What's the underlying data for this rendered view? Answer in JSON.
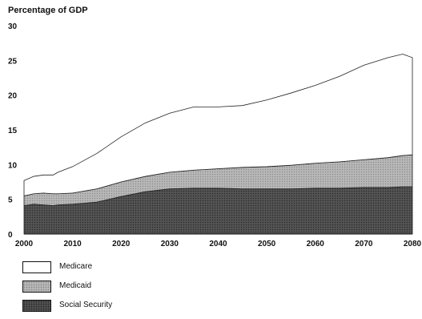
{
  "chart_data": {
    "type": "area",
    "stacked": true,
    "ylabel": "Percentage of GDP",
    "xlabel": "",
    "x": [
      2000,
      2002,
      2004,
      2006,
      2007,
      2010,
      2015,
      2020,
      2025,
      2030,
      2035,
      2040,
      2045,
      2050,
      2055,
      2060,
      2065,
      2070,
      2075,
      2078,
      2080
    ],
    "xlim": [
      2000,
      2080
    ],
    "ylim": [
      0,
      30
    ],
    "xticks": [
      2000,
      2010,
      2020,
      2030,
      2040,
      2050,
      2060,
      2070,
      2080
    ],
    "yticks": [
      0,
      5,
      10,
      15,
      20,
      25,
      30
    ],
    "grid": false,
    "legend_position": "bottom-left",
    "series": [
      {
        "name": "Social Security",
        "color": "#555555",
        "values": [
          4.1,
          4.3,
          4.2,
          4.1,
          4.2,
          4.3,
          4.6,
          5.4,
          6.1,
          6.5,
          6.6,
          6.6,
          6.5,
          6.5,
          6.5,
          6.6,
          6.6,
          6.7,
          6.7,
          6.8,
          6.8
        ]
      },
      {
        "name": "Medicaid",
        "color": "#b8b8b8",
        "values": [
          1.4,
          1.5,
          1.7,
          1.7,
          1.6,
          1.6,
          1.9,
          2.1,
          2.2,
          2.4,
          2.6,
          2.8,
          3.1,
          3.2,
          3.4,
          3.6,
          3.8,
          4.0,
          4.3,
          4.5,
          4.6
        ]
      },
      {
        "name": "Medicare",
        "color": "#ffffff",
        "values": [
          2.2,
          2.5,
          2.6,
          2.7,
          3.1,
          3.8,
          5.1,
          6.5,
          7.7,
          8.5,
          9.1,
          8.9,
          8.9,
          9.6,
          10.4,
          11.2,
          12.3,
          13.6,
          14.4,
          14.6,
          14.0
        ]
      }
    ]
  }
}
